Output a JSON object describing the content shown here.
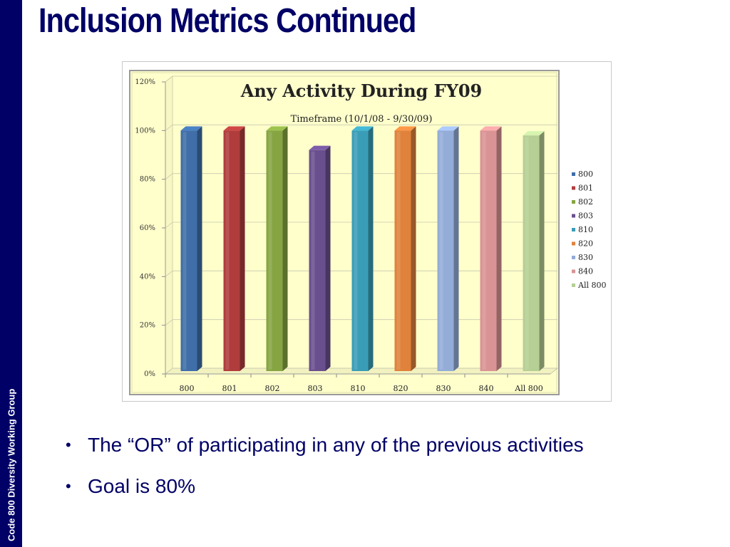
{
  "slide": {
    "title": "Inclusion Metrics Continued",
    "sidebar_text": "Code 800 Diversity Working Group",
    "bullets": [
      "The “OR” of participating in any of the previous activities",
      "Goal is 80%"
    ]
  },
  "chart_data": {
    "type": "bar",
    "title": "Any Activity During FY09",
    "subtitle": "Timeframe (10/1/08 - 9/30/09)",
    "categories": [
      "800",
      "801",
      "802",
      "803",
      "810",
      "820",
      "830",
      "840",
      "All 800"
    ],
    "values": [
      100,
      100,
      100,
      92,
      100,
      100,
      100,
      100,
      98
    ],
    "unit": "%",
    "yticks": [
      "0%",
      "20%",
      "40%",
      "60%",
      "80%",
      "100%",
      "120%"
    ],
    "ylim": [
      0,
      120
    ],
    "legend": [
      "800",
      "801",
      "802",
      "803",
      "810",
      "820",
      "830",
      "840",
      "All 800"
    ],
    "legend_position": "right",
    "colors": [
      "#3f6ea8",
      "#b03c3c",
      "#86a542",
      "#6a4f8f",
      "#3a9db7",
      "#e0823c",
      "#93acd8",
      "#d99394",
      "#b5cf94"
    ],
    "plot_background": "#ffffcc",
    "grid": true,
    "style": "3d-bar"
  }
}
